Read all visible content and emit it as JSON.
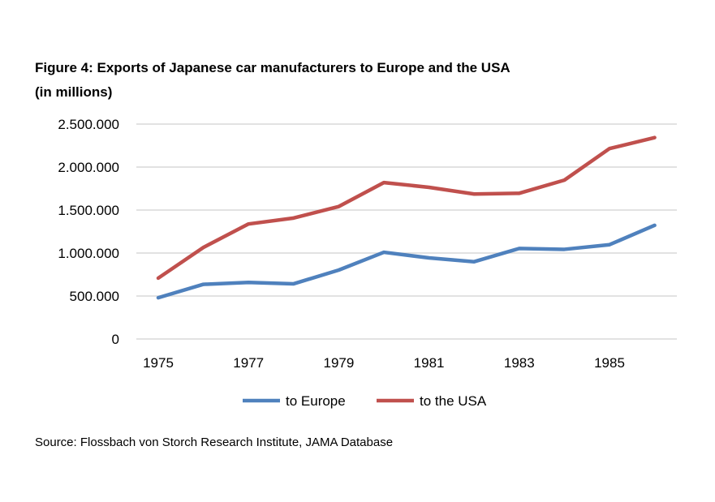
{
  "chart_data": {
    "type": "line",
    "title": "Figure 4: Exports of Japanese car manufacturers to Europe and the USA",
    "subtitle": "(in millions)",
    "x": [
      1975,
      1976,
      1977,
      1978,
      1979,
      1980,
      1981,
      1982,
      1983,
      1984,
      1985,
      1986
    ],
    "x_tick_labels": [
      "1975",
      "1977",
      "1979",
      "1981",
      "1983",
      "1985"
    ],
    "y_tick_values": [
      0,
      500000,
      1000000,
      1500000,
      2000000,
      2500000
    ],
    "y_tick_labels": [
      "0",
      "500.000",
      "1.000.000",
      "1.500.000",
      "2.000.000",
      "2.500.000"
    ],
    "ylim": [
      0,
      2500000
    ],
    "xlabel": "",
    "ylabel": "",
    "grid": "horizontal",
    "legend_position": "bottom",
    "series": [
      {
        "name": "to Europe",
        "color": "#4F81BD",
        "values": [
          480000,
          636000,
          658000,
          642000,
          802000,
          1009000,
          943000,
          899000,
          1053000,
          1043000,
          1097000,
          1322000
        ]
      },
      {
        "name": "to the USA",
        "color": "#C0504D",
        "values": [
          708000,
          1065000,
          1338000,
          1407000,
          1541000,
          1820000,
          1764000,
          1686000,
          1695000,
          1848000,
          2215000,
          2343000
        ]
      }
    ],
    "source": "Source: Flossbach von Storch Research Institute, JAMA Database"
  }
}
